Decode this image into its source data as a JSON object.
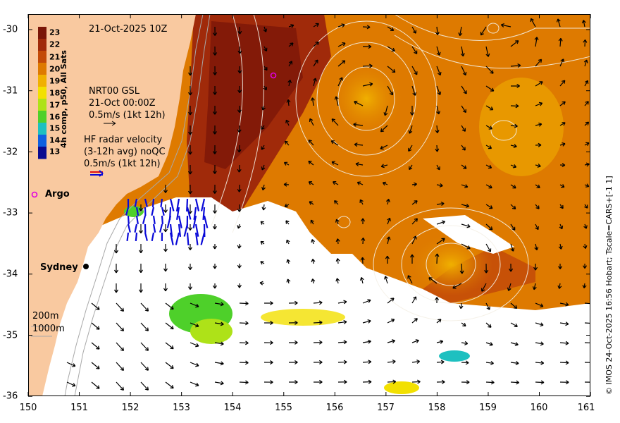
{
  "map": {
    "title": "21-Oct-2025 10Z",
    "credit": "© IMOS 24-Oct-2025 16:56 Hobart; Tscale=CARS+[-1 1]",
    "x_ticks": [
      "150",
      "151",
      "152",
      "153",
      "154",
      "155",
      "156",
      "157",
      "158",
      "159",
      "160",
      "161"
    ],
    "y_ticks": [
      "-30",
      "-31",
      "-32",
      "-33",
      "-34",
      "-35",
      "-36"
    ],
    "extent": {
      "lon": [
        150,
        161
      ],
      "lat": [
        -36,
        -30
      ]
    },
    "colors": {
      "land": "#f9c9a0",
      "no_data": "#ffffff",
      "contour": "#f4f0e6",
      "arrow": "#000000",
      "radar_red": "#e01010",
      "radar_blue": "#0a0ad8",
      "argo": "#e000e0"
    }
  },
  "colorbar": {
    "labels": [
      "23",
      "22",
      "21",
      "20",
      "19",
      "18",
      "17",
      "16",
      "15",
      "14",
      "13"
    ],
    "colors": [
      "#7a1608",
      "#a02a0a",
      "#c34a08",
      "#de7a00",
      "#f0b000",
      "#f2e000",
      "#aee218",
      "#4ed02a",
      "#1ec0c0",
      "#1060e0",
      "#0a0a90"
    ],
    "caption": "4h comp, p50, All Sats"
  },
  "legend": {
    "model_line1": "NRT00 GSL",
    "model_line2": "21-Oct 00:00Z",
    "model_scale": "0.5m/s (1kt 12h)",
    "radar_line1": "HF radar velocity",
    "radar_line2": "(3-12h avg) noQC",
    "radar_scale": "0.5m/s (1kt 12h)",
    "argo": "Argo",
    "city": "Sydney",
    "iso200": "200m",
    "iso1000": "1000m"
  }
}
